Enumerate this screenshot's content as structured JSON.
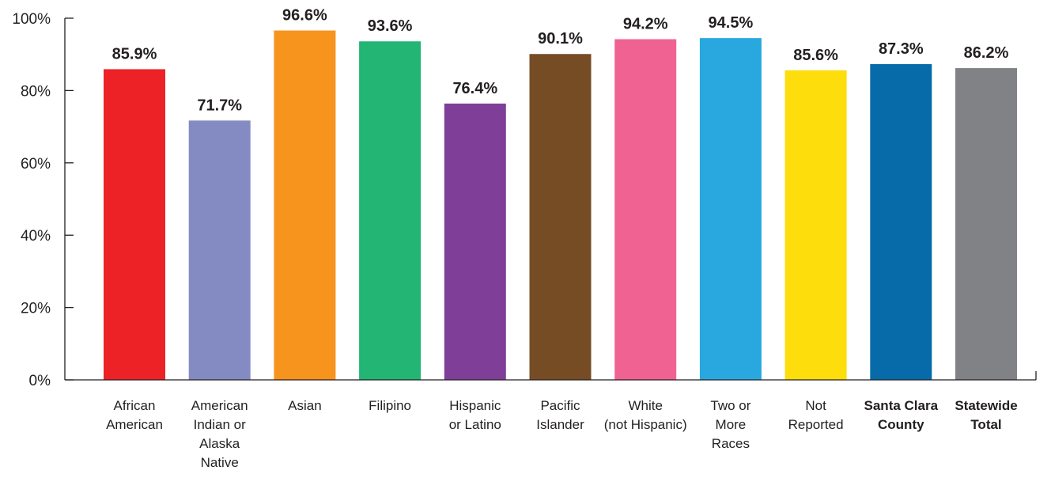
{
  "chart_data": {
    "type": "bar",
    "title": "",
    "xlabel": "",
    "ylabel": "",
    "ylim": [
      0,
      100
    ],
    "y_ticks": [
      0,
      20,
      40,
      60,
      80,
      100
    ],
    "y_tick_format": "{v}%",
    "grid": false,
    "legend": "none",
    "categories": [
      {
        "lines": [
          "African",
          "American"
        ],
        "bold": false
      },
      {
        "lines": [
          "American",
          "Indian or",
          "Alaska",
          "Native"
        ],
        "bold": false
      },
      {
        "lines": [
          "Asian"
        ],
        "bold": false
      },
      {
        "lines": [
          "Filipino"
        ],
        "bold": false
      },
      {
        "lines": [
          "Hispanic",
          "or Latino"
        ],
        "bold": false
      },
      {
        "lines": [
          "Pacific",
          "Islander"
        ],
        "bold": false
      },
      {
        "lines": [
          "White",
          "(not Hispanic)"
        ],
        "bold": false
      },
      {
        "lines": [
          "Two or",
          "More",
          "Races"
        ],
        "bold": false
      },
      {
        "lines": [
          "Not",
          "Reported"
        ],
        "bold": false
      },
      {
        "lines": [
          "Santa Clara",
          "County"
        ],
        "bold": true
      },
      {
        "lines": [
          "Statewide",
          "Total"
        ],
        "bold": true
      }
    ],
    "values": [
      85.9,
      71.7,
      96.6,
      93.6,
      76.4,
      90.1,
      94.2,
      94.5,
      85.6,
      87.3,
      86.2
    ],
    "value_labels": [
      "85.9%",
      "71.7%",
      "96.6%",
      "93.6%",
      "76.4%",
      "90.1%",
      "94.2%",
      "94.5%",
      "85.6%",
      "87.3%",
      "86.2%"
    ],
    "colors": [
      "#ec2227",
      "#838bc2",
      "#f7941d",
      "#22b573",
      "#7f3f98",
      "#754c24",
      "#f06292",
      "#29a8e0",
      "#fddd0c",
      "#066ba8",
      "#808285"
    ]
  }
}
